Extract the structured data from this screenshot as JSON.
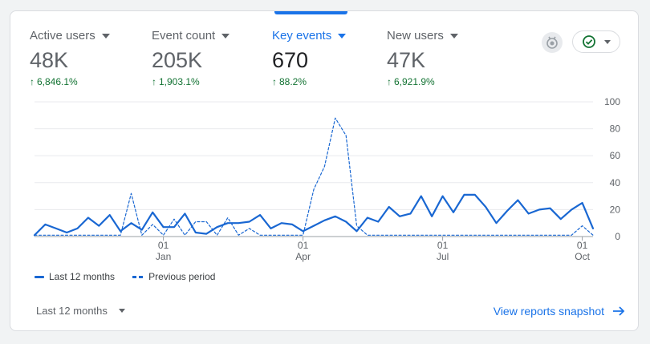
{
  "metrics": [
    {
      "label": "Active users",
      "value": "48K",
      "change": "6,846.1%",
      "active": false
    },
    {
      "label": "Event count",
      "value": "205K",
      "change": "1,903.1%",
      "active": false
    },
    {
      "label": "Key events",
      "value": "670",
      "change": "88.2%",
      "active": true
    },
    {
      "label": "New users",
      "value": "47K",
      "change": "6,921.9%",
      "active": false
    }
  ],
  "toolbar": {
    "badge_icon": "insights-badge-icon",
    "status_icon": "check-circle-icon"
  },
  "legend": {
    "current": "Last 12 months",
    "previous": "Previous period"
  },
  "footer": {
    "range_label": "Last 12 months",
    "snapshot_link": "View reports snapshot"
  },
  "colors": {
    "accent": "#1a73e8",
    "series": "#1967d2",
    "positive": "#137333"
  },
  "chart_data": {
    "type": "line",
    "ylim": [
      0,
      100
    ],
    "y_ticks": [
      0,
      20,
      40,
      60,
      80,
      100
    ],
    "x_ticks": [
      {
        "day": "01",
        "month": "Jan",
        "index": 12
      },
      {
        "day": "01",
        "month": "Apr",
        "index": 25
      },
      {
        "day": "01",
        "month": "Jul",
        "index": 38
      },
      {
        "day": "01",
        "month": "Oct",
        "index": 51
      }
    ],
    "series": [
      {
        "name": "Last 12 months",
        "style": "solid",
        "values": [
          1,
          9,
          6,
          3,
          6,
          14,
          8,
          16,
          4,
          10,
          5,
          18,
          7,
          7,
          17,
          3,
          2,
          7,
          10,
          10,
          11,
          16,
          6,
          10,
          9,
          4,
          8,
          12,
          15,
          11,
          4,
          14,
          11,
          22,
          15,
          17,
          30,
          15,
          30,
          18,
          31,
          31,
          22,
          10,
          19,
          27,
          17,
          20,
          21,
          13,
          20,
          25,
          6
        ]
      },
      {
        "name": "Previous period",
        "style": "dashed",
        "values": [
          1,
          1,
          1,
          1,
          1,
          1,
          1,
          1,
          1,
          32,
          1,
          9,
          1,
          13,
          1,
          11,
          11,
          1,
          14,
          1,
          6,
          1,
          1,
          1,
          1,
          1,
          35,
          52,
          88,
          75,
          8,
          1,
          1,
          1,
          1,
          1,
          1,
          1,
          1,
          1,
          1,
          1,
          1,
          1,
          1,
          1,
          1,
          1,
          1,
          1,
          1,
          8,
          1
        ]
      }
    ]
  }
}
